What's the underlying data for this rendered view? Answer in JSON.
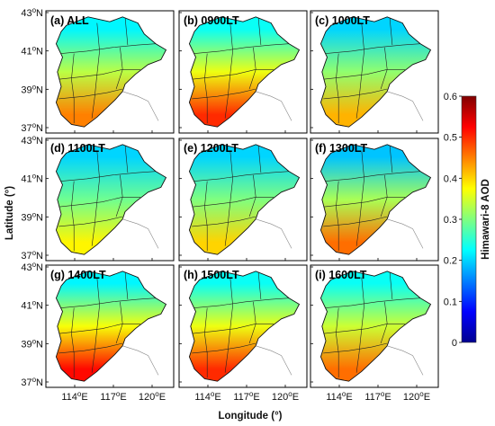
{
  "figure": {
    "ylabel": "Latitude (°)",
    "xlabel": "Longitude (°)",
    "colorbar_label": "Himawari-8 AOD",
    "lat_ticks": [
      "43°N",
      "41°N",
      "39°N",
      "37°N"
    ],
    "lon_ticks": [
      "114°E",
      "117°E",
      "120°E"
    ],
    "colorbar_ticks": [
      "0",
      "0.1",
      "0.2",
      "0.3",
      "0.4",
      "0.5",
      "0.6"
    ],
    "colormap": "jet",
    "colorbar_range": [
      0,
      0.6
    ]
  },
  "panels": [
    {
      "title": "(a) ALL",
      "mean_aod_south": 0.45,
      "mean_aod_north": 0.22
    },
    {
      "title": "(b) 0900LT",
      "mean_aod_south": 0.5,
      "mean_aod_north": 0.23
    },
    {
      "title": "(c) 1000LT",
      "mean_aod_south": 0.42,
      "mean_aod_north": 0.2
    },
    {
      "title": "(d) 1100LT",
      "mean_aod_south": 0.38,
      "mean_aod_north": 0.2
    },
    {
      "title": "(e) 1200LT",
      "mean_aod_south": 0.4,
      "mean_aod_north": 0.2
    },
    {
      "title": "(f) 1300LT",
      "mean_aod_south": 0.46,
      "mean_aod_north": 0.19
    },
    {
      "title": "(g) 1400LT",
      "mean_aod_south": 0.52,
      "mean_aod_north": 0.22
    },
    {
      "title": "(h) 1500LT",
      "mean_aod_south": 0.5,
      "mean_aod_north": 0.23
    },
    {
      "title": "(i) 1600LT",
      "mean_aod_south": 0.46,
      "mean_aod_north": 0.23
    }
  ]
}
